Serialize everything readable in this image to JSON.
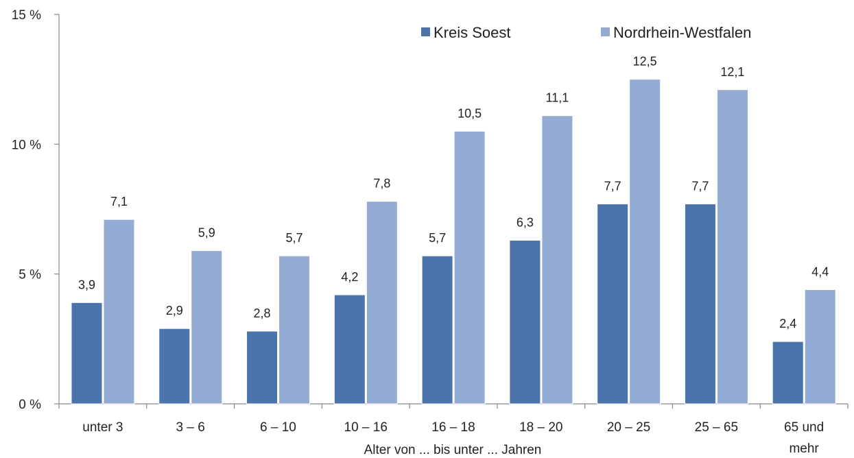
{
  "chart_data": {
    "type": "bar",
    "categories": [
      [
        "unter 3"
      ],
      [
        "3 –  6"
      ],
      [
        "6 – 10"
      ],
      [
        "10 – 16"
      ],
      [
        "16 – 18"
      ],
      [
        "18 – 20"
      ],
      [
        "20 – 25"
      ],
      [
        "25 – 65"
      ],
      [
        "65 und",
        "mehr"
      ]
    ],
    "series": [
      {
        "name": "Kreis Soest",
        "color": "#4a74aa",
        "values": [
          3.9,
          2.9,
          2.8,
          4.2,
          5.7,
          6.3,
          7.7,
          7.7,
          2.4
        ],
        "labels": [
          "3,9",
          "2,9",
          "2,8",
          "4,2",
          "5,7",
          "6,3",
          "7,7",
          "7,7",
          "2,4"
        ]
      },
      {
        "name": "Nordrhein-Westfalen",
        "color": "#94abd4",
        "values": [
          7.1,
          5.9,
          5.7,
          7.8,
          10.5,
          11.1,
          12.5,
          12.1,
          4.4
        ],
        "labels": [
          "7,1",
          "5,9",
          "5,7",
          "7,8",
          "10,5",
          "11,1",
          "12,5",
          "12,1",
          "4,4"
        ]
      }
    ],
    "xlabel": "Alter von ... bis unter ... Jahren",
    "ylabel": "",
    "ylim": [
      0,
      15
    ],
    "yticks": [
      0,
      5,
      10,
      15
    ],
    "ytick_labels": [
      "0 %",
      "5 %",
      "10 %",
      "15 %"
    ],
    "grid": false,
    "legend_position": "top-right"
  }
}
